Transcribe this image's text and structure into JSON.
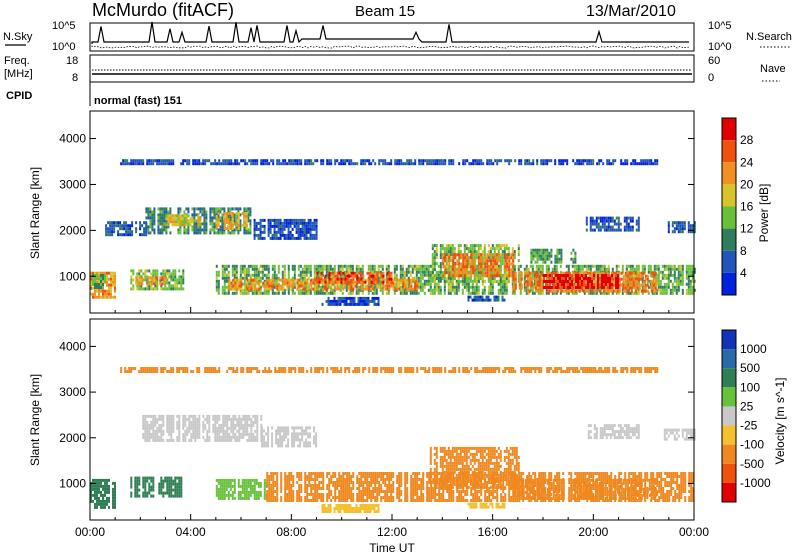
{
  "header": {
    "site": "McMurdo (fitACF)",
    "beam": "Beam 15",
    "date": "13/Mar/2010"
  },
  "nsky_panel": {
    "left_label": "N.Sky",
    "right_label": "N.Search",
    "left_ticks": [
      "10^5",
      "10^0"
    ],
    "right_ticks": [
      "10^5",
      "10^0"
    ]
  },
  "freq_panel": {
    "left_label_1": "Freq.",
    "left_label_2": "[MHz]",
    "right_label": "Nave",
    "left_ticks": [
      "18",
      "8"
    ],
    "right_ticks": [
      "60",
      "0"
    ]
  },
  "cpid_panel": {
    "label": "CPID",
    "program": "normal (fast) 151"
  },
  "colors": {
    "power": [
      "#0022dd",
      "#2255bb",
      "#2e7d5e",
      "#6abf3a",
      "#d6c52a",
      "#f09020",
      "#f05010",
      "#e00000"
    ],
    "velocity": [
      "#1133bb",
      "#2b6aa8",
      "#2f7f55",
      "#66c23a",
      "#c8c8c8",
      "#f5c030",
      "#f08820",
      "#f05010",
      "#e00000"
    ]
  },
  "chart_data": [
    {
      "type": "heatmap",
      "panel": "power",
      "ylabel": "Slant Range [km]",
      "yticks": [
        1000,
        2000,
        3000,
        4000
      ],
      "ylim": [
        200,
        4600
      ],
      "xlim": [
        0,
        24
      ],
      "colorbar_label": "Power [dB]",
      "colorbar_ticks": [
        "4",
        "8",
        "12",
        "16",
        "20",
        "24",
        "28"
      ],
      "regions": [
        {
          "t0": 0.0,
          "t1": 1.1,
          "r0": 550,
          "r1": 1100,
          "v": 22
        },
        {
          "t0": 0.0,
          "t1": 0.6,
          "r0": 780,
          "r1": 1050,
          "v": 12
        },
        {
          "t0": 1.6,
          "t1": 3.7,
          "r0": 700,
          "r1": 1150,
          "v": 14
        },
        {
          "t0": 1.8,
          "t1": 3.0,
          "r0": 820,
          "r1": 1000,
          "v": 22
        },
        {
          "t0": 2.2,
          "t1": 6.5,
          "r0": 1950,
          "r1": 2500,
          "v": 10
        },
        {
          "t0": 5.0,
          "t1": 6.2,
          "r0": 2050,
          "r1": 2400,
          "v": 20
        },
        {
          "t0": 3.0,
          "t1": 4.4,
          "r0": 2100,
          "r1": 2350,
          "v": 18
        },
        {
          "t0": 0.6,
          "t1": 2.2,
          "r0": 1900,
          "r1": 2200,
          "v": 6
        },
        {
          "t0": 5.0,
          "t1": 24.0,
          "r0": 650,
          "r1": 1250,
          "v": 13
        },
        {
          "t0": 5.5,
          "t1": 13.0,
          "r0": 750,
          "r1": 950,
          "v": 22
        },
        {
          "t0": 9.0,
          "t1": 12.0,
          "r0": 850,
          "r1": 1100,
          "v": 26
        },
        {
          "t0": 13.5,
          "t1": 17.0,
          "r0": 900,
          "r1": 1700,
          "v": 14
        },
        {
          "t0": 14.0,
          "t1": 16.8,
          "r0": 1000,
          "r1": 1500,
          "v": 24
        },
        {
          "t0": 16.8,
          "t1": 22.5,
          "r0": 650,
          "r1": 1100,
          "v": 24
        },
        {
          "t0": 18.0,
          "t1": 21.0,
          "r0": 750,
          "r1": 1050,
          "v": 30
        },
        {
          "t0": 17.5,
          "t1": 19.3,
          "r0": 1300,
          "r1": 1600,
          "v": 12
        },
        {
          "t0": 19.7,
          "t1": 21.8,
          "r0": 2000,
          "r1": 2300,
          "v": 6
        },
        {
          "t0": 22.8,
          "t1": 24.0,
          "r0": 1950,
          "r1": 2200,
          "v": 6
        },
        {
          "t0": 6.5,
          "t1": 9.0,
          "r0": 1850,
          "r1": 2250,
          "v": 5
        },
        {
          "t0": 1.2,
          "t1": 22.5,
          "r0": 3450,
          "r1": 3550,
          "v": 5
        },
        {
          "t0": 9.2,
          "t1": 11.5,
          "r0": 400,
          "r1": 550,
          "v": 5
        },
        {
          "t0": 15.0,
          "t1": 16.5,
          "r0": 450,
          "r1": 580,
          "v": 5
        }
      ]
    },
    {
      "type": "heatmap",
      "panel": "velocity",
      "ylabel": "Slant Range [km]",
      "yticks": [
        1000,
        2000,
        3000,
        4000
      ],
      "ylim": [
        200,
        4600
      ],
      "xlim": [
        0,
        24
      ],
      "xlabel": "Time UT",
      "xticks": [
        "00:00",
        "04:00",
        "08:00",
        "12:00",
        "16:00",
        "20:00",
        "00:00"
      ],
      "colorbar_label": "Velocity [m s^-1]",
      "colorbar_ticks": [
        "1000",
        "500",
        "100",
        "25",
        "-25",
        "-100",
        "-500",
        "-1000"
      ],
      "regions": [
        {
          "t0": 0.0,
          "t1": 1.0,
          "r0": 500,
          "r1": 1100,
          "v": 300
        },
        {
          "t0": 1.6,
          "t1": 3.6,
          "r0": 700,
          "r1": 1150,
          "v": 150
        },
        {
          "t0": 5.0,
          "t1": 7.0,
          "r0": 700,
          "r1": 1100,
          "v": 60
        },
        {
          "t0": 7.0,
          "t1": 24.0,
          "r0": 650,
          "r1": 1250,
          "v": -150
        },
        {
          "t0": 13.5,
          "t1": 17.0,
          "r0": 900,
          "r1": 1800,
          "v": -150
        },
        {
          "t0": 16.8,
          "t1": 22.5,
          "r0": 650,
          "r1": 1100,
          "v": -200
        },
        {
          "t0": 2.0,
          "t1": 6.8,
          "r0": 1950,
          "r1": 2500,
          "v": 0
        },
        {
          "t0": 6.8,
          "t1": 9.0,
          "r0": 1850,
          "r1": 2250,
          "v": 0
        },
        {
          "t0": 19.7,
          "t1": 21.8,
          "r0": 2000,
          "r1": 2300,
          "v": 0
        },
        {
          "t0": 22.8,
          "t1": 24.0,
          "r0": 1950,
          "r1": 2200,
          "v": 0
        },
        {
          "t0": 1.2,
          "t1": 22.5,
          "r0": 3450,
          "r1": 3550,
          "v": -300
        },
        {
          "t0": 9.2,
          "t1": 11.5,
          "r0": 400,
          "r1": 550,
          "v": -60
        },
        {
          "t0": 15.0,
          "t1": 16.5,
          "r0": 450,
          "r1": 580,
          "v": -60
        }
      ]
    }
  ]
}
